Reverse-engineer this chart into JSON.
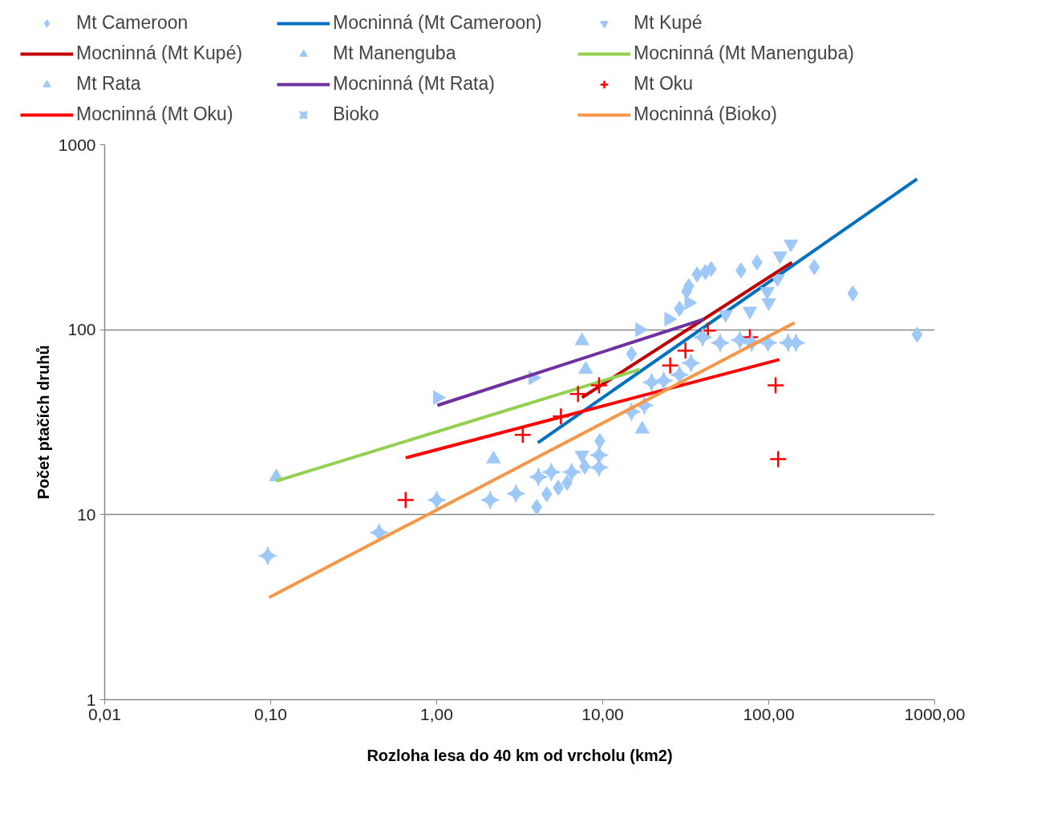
{
  "chart_data": {
    "type": "scatter",
    "xlabel": "Rozloha lesa do 40 km od vrcholu (km2)",
    "ylabel": "Počet ptačích druhů",
    "log": "xy",
    "grid": "y",
    "legend": "top",
    "xlim": [
      0.01,
      1000
    ],
    "ylim": [
      1,
      1000
    ],
    "xticks": [
      {
        "value": 0.01,
        "label": "0,01"
      },
      {
        "value": 0.1,
        "label": "0,10"
      },
      {
        "value": 1,
        "label": "1,00"
      },
      {
        "value": 10,
        "label": "10,00"
      },
      {
        "value": 100,
        "label": "100,00"
      },
      {
        "value": 1000,
        "label": "1000,00"
      }
    ],
    "yticks": [
      1,
      10,
      100,
      1000
    ],
    "series": [
      {
        "name": "Mt Cameroon",
        "marker": "diamond",
        "color": "#9dc8f8",
        "x": [
          4.0,
          4.6,
          5.4,
          6.1,
          7.8,
          9.6,
          14.9,
          29,
          32,
          33,
          37,
          41.5,
          45,
          68,
          85,
          188,
          321,
          783
        ],
        "values": [
          11,
          12.9,
          14,
          14.9,
          18.2,
          25,
          74,
          130,
          161,
          172,
          199,
          205,
          213,
          209,
          231,
          218,
          157,
          94
        ]
      },
      {
        "name": "Mocninná (Mt Cameroon)",
        "type": "line",
        "color": "#0070c0",
        "x": [
          4.07,
          783
        ],
        "values": [
          24.5,
          653
        ]
      },
      {
        "name": "Mt Kupé",
        "marker": "triangle_down",
        "color": "#9dc8f8",
        "x": [
          7.5,
          55,
          77,
          98,
          100,
          113,
          117,
          136
        ],
        "values": [
          21,
          121,
          126,
          161,
          140,
          189,
          251,
          291
        ]
      },
      {
        "name": "Mocninná (Mt Kupé)",
        "type": "line",
        "color": "#c00000",
        "x": [
          7.5,
          138
        ],
        "values": [
          43,
          231
        ]
      },
      {
        "name": "Mt Manenguba",
        "marker": "triangle",
        "color": "#9dc8f8",
        "x": [
          0.108,
          2.2,
          7.5,
          7.9,
          17.3
        ],
        "values": [
          16,
          20,
          87,
          61,
          29
        ]
      },
      {
        "name": "Mocninná (Mt Manenguba)",
        "type": "line",
        "color": "#92d050",
        "x": [
          0.108,
          16.7
        ],
        "values": [
          15.2,
          61
        ]
      },
      {
        "name": "Mt Rata",
        "marker": "triangle_right",
        "color": "#9dc8f8",
        "x": [
          1.01,
          3.8,
          16.7,
          25,
          33
        ],
        "values": [
          43,
          55,
          100,
          114,
          140
        ]
      },
      {
        "name": "Mocninná (Mt Rata)",
        "type": "line",
        "color": "#7030a0",
        "x": [
          1.01,
          40.6
        ],
        "values": [
          39,
          114
        ]
      },
      {
        "name": "Mt Oku",
        "marker": "cross",
        "color": "#ff0000",
        "x": [
          0.65,
          3.3,
          5.6,
          7.1,
          9.5,
          25.5,
          31.5,
          43,
          77,
          110,
          114
        ],
        "values": [
          12,
          27,
          34,
          45,
          50,
          64,
          77,
          99,
          91,
          50,
          20
        ]
      },
      {
        "name": "Mocninná (Mt Oku)",
        "type": "line",
        "color": "#ff0000",
        "x": [
          0.65,
          116
        ],
        "values": [
          20.3,
          69
        ]
      },
      {
        "name": "Bioko",
        "color": "#9dc8f8",
        "x": [
          0.096,
          0.45,
          1.0,
          2.1,
          3.0,
          4.1,
          4.9,
          6.5,
          9.5,
          9.5,
          14.9,
          17.8,
          19.7,
          23.3,
          29,
          34,
          40,
          51,
          67,
          79,
          99,
          131,
          146
        ],
        "values": [
          6,
          8,
          12,
          12,
          13,
          16,
          17,
          17,
          18,
          21,
          36,
          39,
          52,
          53,
          57,
          66,
          91,
          85,
          88,
          85,
          85,
          85,
          85
        ]
      },
      {
        "name": "Mocninná (Bioko)",
        "type": "line",
        "color": "#f79646",
        "x": [
          0.098,
          143
        ],
        "values": [
          3.57,
          109
        ]
      }
    ]
  }
}
